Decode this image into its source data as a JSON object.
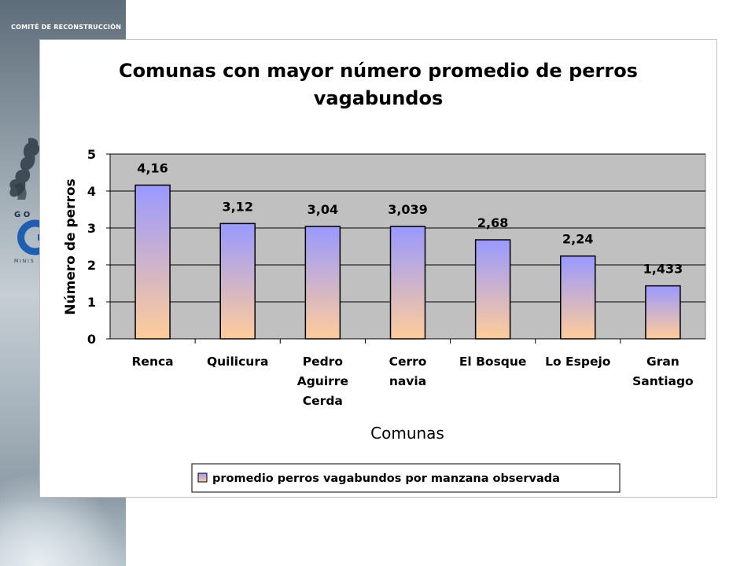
{
  "header": {
    "label": "COMITÉ DE RECONSTRUCCIÓN"
  },
  "branding": {
    "logo_letters_top": "G O",
    "logo_letters_bottom": "M I N I S"
  },
  "colors": {
    "plot_bg": "#c0c0c0",
    "bar_top": "#9999ff",
    "bar_bottom": "#ffcc99",
    "gridline": "#000000"
  },
  "chart_data": {
    "type": "bar",
    "title": "Comunas con mayor número promedio de perros vagabundos",
    "title_lines": [
      "Comunas con mayor número promedio de perros",
      "vagabundos"
    ],
    "xlabel": "Comunas",
    "ylabel": "Número de perros",
    "categories": [
      [
        "Renca"
      ],
      [
        "Quilicura"
      ],
      [
        "Pedro",
        "Aguirre",
        "Cerda"
      ],
      [
        "Cerro",
        "navia"
      ],
      [
        "El Bosque"
      ],
      [
        "Lo Espejo"
      ],
      [
        "Gran",
        "Santiago"
      ]
    ],
    "series": [
      {
        "name": "promedio perros vagabundos por manzana observada",
        "values": [
          4.16,
          3.12,
          3.04,
          3.039,
          2.68,
          2.24,
          1.433
        ],
        "labels": [
          "4,16",
          "3,12",
          "3,04",
          "3,039",
          "2,68",
          "2,24",
          "1,433"
        ]
      }
    ],
    "yticks": [
      "0",
      "1",
      "2",
      "3",
      "4",
      "5"
    ],
    "ylim": [
      0,
      5
    ],
    "grid": true,
    "legend_position": "bottom"
  }
}
